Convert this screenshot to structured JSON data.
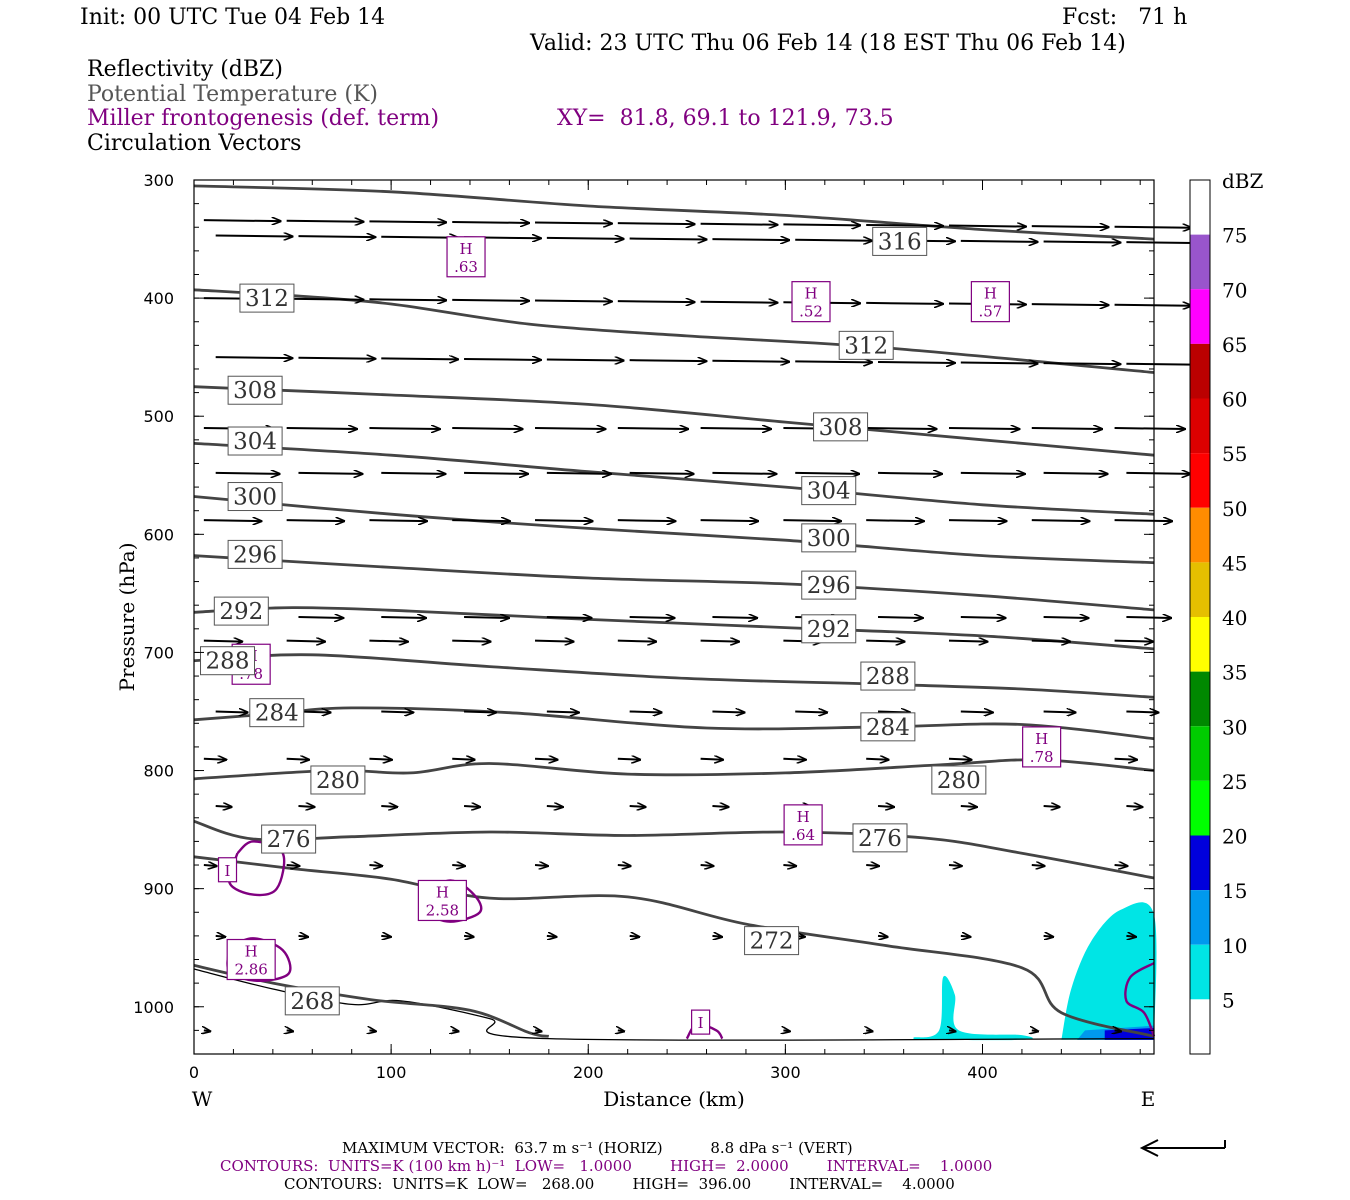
{
  "header": {
    "init": "Init: 00 UTC Tue 04 Feb 14",
    "fcst": "Fcst:   71 h",
    "valid": "Valid: 23 UTC Thu 06 Feb 14 (18 EST Thu 06 Feb 14)",
    "fields": [
      {
        "text": "Reflectivity (dBZ)",
        "color": "#000000"
      },
      {
        "text": "Potential Temperature (K)",
        "color": "#555555"
      },
      {
        "text": "Miller frontogenesis (def. term)",
        "color": "#800080"
      },
      {
        "text": "Circulation Vectors",
        "color": "#000000"
      }
    ],
    "xy": "XY=  81.8, 69.1 to 121.9, 73.5"
  },
  "chart_data": {
    "type": "cross-section",
    "xlabel": "Distance (km)",
    "ylabel": "Pressure (hPa)",
    "xlim": [
      0,
      487
    ],
    "ylim": [
      1040,
      300
    ],
    "x_ticks": [
      0,
      100,
      200,
      300,
      400
    ],
    "y_ticks": [
      300,
      400,
      500,
      600,
      700,
      800,
      900,
      1000
    ],
    "left_label": "W",
    "right_label": "E",
    "theta_contours": [
      {
        "value": 316,
        "points": [
          [
            0,
            305
          ],
          [
            100,
            310
          ],
          [
            200,
            322
          ],
          [
            300,
            330
          ],
          [
            400,
            342
          ],
          [
            487,
            350
          ]
        ],
        "label_at": [
          358,
          352
        ]
      },
      {
        "value": 312,
        "points": [
          [
            0,
            393
          ],
          [
            50,
            398
          ],
          [
            100,
            405
          ],
          [
            170,
            422
          ],
          [
            250,
            432
          ],
          [
            350,
            442
          ],
          [
            487,
            463
          ]
        ],
        "label_at": [
          [
            37,
            400
          ],
          [
            341,
            440
          ]
        ]
      },
      {
        "value": 308,
        "points": [
          [
            0,
            475
          ],
          [
            100,
            482
          ],
          [
            200,
            490
          ],
          [
            300,
            505
          ],
          [
            400,
            520
          ],
          [
            487,
            533
          ]
        ],
        "label_at": [
          [
            31,
            478
          ],
          [
            328,
            509
          ]
        ]
      },
      {
        "value": 304,
        "points": [
          [
            0,
            523
          ],
          [
            100,
            533
          ],
          [
            200,
            547
          ],
          [
            300,
            560
          ],
          [
            400,
            575
          ],
          [
            487,
            583
          ]
        ],
        "label_at": [
          [
            31,
            521
          ],
          [
            322,
            563
          ]
        ]
      },
      {
        "value": 300,
        "points": [
          [
            0,
            568
          ],
          [
            100,
            583
          ],
          [
            200,
            595
          ],
          [
            300,
            605
          ],
          [
            400,
            618
          ],
          [
            487,
            624
          ]
        ],
        "label_at": [
          [
            31,
            568
          ],
          [
            322,
            603
          ]
        ]
      },
      {
        "value": 296,
        "points": [
          [
            0,
            618
          ],
          [
            100,
            628
          ],
          [
            200,
            637
          ],
          [
            300,
            642
          ],
          [
            400,
            652
          ],
          [
            487,
            664
          ]
        ],
        "label_at": [
          [
            31,
            617
          ],
          [
            322,
            643
          ]
        ]
      },
      {
        "value": 292,
        "points": [
          [
            0,
            666
          ],
          [
            50,
            662
          ],
          [
            110,
            665
          ],
          [
            200,
            672
          ],
          [
            300,
            679
          ],
          [
            400,
            686
          ],
          [
            487,
            697
          ]
        ],
        "label_at": [
          [
            24,
            665
          ],
          [
            322,
            680
          ]
        ]
      },
      {
        "value": 288,
        "points": [
          [
            0,
            707
          ],
          [
            60,
            702
          ],
          [
            150,
            712
          ],
          [
            250,
            722
          ],
          [
            350,
            727
          ],
          [
            420,
            731
          ],
          [
            487,
            738
          ]
        ],
        "label_at": [
          [
            17,
            707
          ],
          [
            352,
            720
          ]
        ]
      },
      {
        "value": 284,
        "points": [
          [
            0,
            757
          ],
          [
            40,
            752
          ],
          [
            80,
            747
          ],
          [
            160,
            751
          ],
          [
            260,
            764
          ],
          [
            350,
            763
          ],
          [
            420,
            761
          ],
          [
            487,
            773
          ]
        ],
        "label_at": [
          [
            42,
            751
          ],
          [
            352,
            763
          ]
        ]
      },
      {
        "value": 280,
        "points": [
          [
            0,
            807
          ],
          [
            70,
            800
          ],
          [
            110,
            802
          ],
          [
            150,
            794
          ],
          [
            220,
            803
          ],
          [
            300,
            802
          ],
          [
            380,
            795
          ],
          [
            430,
            791
          ],
          [
            487,
            800
          ]
        ],
        "label_at": [
          [
            73,
            808
          ],
          [
            388,
            808
          ]
        ]
      },
      {
        "value": 276,
        "points": [
          [
            0,
            843
          ],
          [
            30,
            858
          ],
          [
            80,
            856
          ],
          [
            150,
            852
          ],
          [
            220,
            855
          ],
          [
            300,
            852
          ],
          [
            370,
            857
          ],
          [
            420,
            870
          ],
          [
            487,
            891
          ]
        ],
        "label_at": [
          [
            48,
            858
          ],
          [
            348,
            857
          ]
        ]
      },
      {
        "value": 272,
        "points": [
          [
            0,
            873
          ],
          [
            50,
            883
          ],
          [
            100,
            892
          ],
          [
            150,
            908
          ],
          [
            220,
            907
          ],
          [
            280,
            930
          ],
          [
            350,
            948
          ],
          [
            420,
            967
          ],
          [
            440,
            1005
          ],
          [
            487,
            1025
          ]
        ],
        "label_at": [
          293,
          944
        ]
      },
      {
        "value": 268,
        "points": [
          [
            0,
            965
          ],
          [
            40,
            980
          ],
          [
            90,
            994
          ],
          [
            140,
            1003
          ],
          [
            170,
            1022
          ],
          [
            180,
            1025
          ]
        ],
        "label_at": [
          60,
          995
        ]
      }
    ],
    "frontogenesis_maxima": [
      {
        "label": "H",
        "value": ".63",
        "x": 138,
        "p": 365
      },
      {
        "label": "H",
        "value": ".52",
        "x": 313,
        "p": 403
      },
      {
        "label": "H",
        "value": ".57",
        "x": 404,
        "p": 403
      },
      {
        "label": "H",
        "value": ".78",
        "x": 29,
        "p": 710
      },
      {
        "label": "H",
        "value": ".78",
        "x": 430,
        "p": 780
      },
      {
        "label": "H",
        "value": ".64",
        "x": 309,
        "p": 846
      },
      {
        "label": "H",
        "value": "2.58",
        "x": 126,
        "p": 910
      },
      {
        "label": "H",
        "value": "2.86",
        "x": 29,
        "p": 960
      }
    ],
    "frontogenesis_minima": [
      {
        "label": "I",
        "x": 17,
        "p": 884
      },
      {
        "label": "I",
        "x": 257,
        "p": 1013
      }
    ],
    "reflectivity_cbar": {
      "unit": "dBZ",
      "levels": [
        "5",
        "10",
        "15",
        "20",
        "25",
        "30",
        "35",
        "40",
        "45",
        "50",
        "55",
        "60",
        "65",
        "70",
        "75"
      ],
      "colors": [
        "#ffffff",
        "#00e5e5",
        "#0099ee",
        "#0000dd",
        "#00ff00",
        "#00cc00",
        "#008800",
        "#ffff00",
        "#e5bf00",
        "#ff8c00",
        "#ff0000",
        "#dd0000",
        "#bb0000",
        "#ff00ff",
        "#9955cc",
        "#ffffff"
      ]
    },
    "vectors": {
      "rows": [
        {
          "p": 334,
          "dx": 24
        },
        {
          "p": 347,
          "dx": 24
        },
        {
          "p": 400,
          "dx": 24
        },
        {
          "p": 450,
          "dx": 24
        },
        {
          "p": 510,
          "dx": 22
        },
        {
          "p": 548,
          "dx": 20
        },
        {
          "p": 588,
          "dx": 18
        },
        {
          "p": 670,
          "dx": 14
        },
        {
          "p": 690,
          "dx": 12
        },
        {
          "p": 750,
          "dx": 10
        },
        {
          "p": 790,
          "dx": 7
        },
        {
          "p": 830,
          "dx": 5
        },
        {
          "p": 880,
          "dx": 4
        },
        {
          "p": 940,
          "dx": 3
        },
        {
          "p": 1020,
          "dx": 2
        }
      ]
    }
  },
  "footer": {
    "max_vector": "MAXIMUM VECTOR:  63.7 m s⁻¹ (HORIZ)          8.8 dPa s⁻¹ (VERT)",
    "contours1": "CONTOURS:  UNITS=K (100 km h)⁻¹  LOW=   1.0000        HIGH=  2.0000        INTERVAL=    1.0000",
    "contours2": "CONTOURS:  UNITS=K  LOW=   268.00        HIGH=  396.00        INTERVAL=    4.0000"
  }
}
